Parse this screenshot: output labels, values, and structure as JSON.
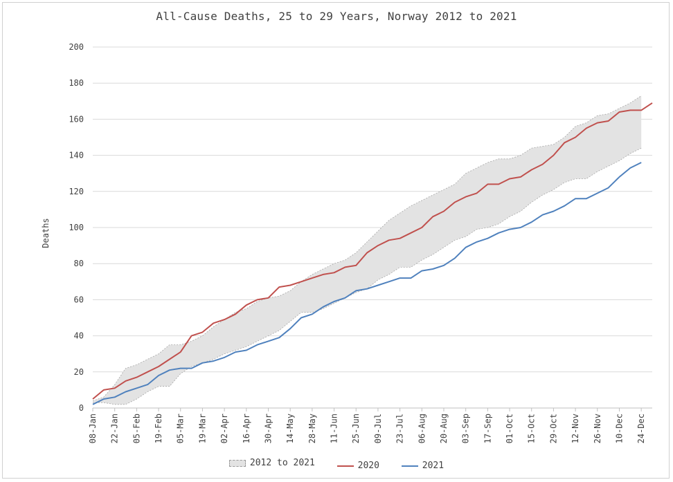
{
  "chart_data": {
    "type": "line",
    "title": "All-Cause Deaths, 25 to 29 Years, Norway 2012 to 2021",
    "xlabel": "",
    "ylabel": "Deaths",
    "ylim": [
      0,
      200
    ],
    "yticks": [
      0,
      20,
      40,
      60,
      80,
      100,
      120,
      140,
      160,
      180,
      200
    ],
    "grid": "horizontal",
    "legend_position": "bottom",
    "x_tick_labels": [
      "08-Jan",
      "22-Jan",
      "05-Feb",
      "19-Feb",
      "05-Mar",
      "19-Mar",
      "02-Apr",
      "16-Apr",
      "30-Apr",
      "14-May",
      "28-May",
      "11-Jun",
      "25-Jun",
      "09-Jul",
      "23-Jul",
      "06-Aug",
      "20-Aug",
      "03-Sep",
      "17-Sep",
      "01-Oct",
      "15-Oct",
      "29-Oct",
      "12-Nov",
      "26-Nov",
      "10-Dec",
      "24-Dec"
    ],
    "band": {
      "name": "2012 to 2021",
      "color": "#e3e3e3",
      "lower": [
        3,
        3,
        2,
        2,
        5,
        9,
        12,
        12,
        19,
        23,
        25,
        27,
        30,
        32,
        34,
        37,
        40,
        43,
        48,
        53,
        53,
        55,
        58,
        61,
        64,
        66,
        71,
        74,
        78,
        78,
        82,
        85,
        89,
        93,
        95,
        99,
        100,
        102,
        106,
        109,
        114,
        118,
        121,
        125,
        127,
        127,
        131,
        134,
        137,
        141,
        144
      ],
      "upper": [
        4,
        6,
        13,
        22,
        24,
        27,
        30,
        35,
        35,
        37,
        40,
        45,
        49,
        53,
        55,
        59,
        61,
        62,
        65,
        70,
        74,
        77,
        80,
        82,
        86,
        92,
        98,
        104,
        108,
        112,
        115,
        118,
        121,
        124,
        130,
        133,
        136,
        138,
        138,
        140,
        144,
        145,
        146,
        150,
        156,
        158,
        162,
        163,
        166,
        169,
        173
      ]
    },
    "series": [
      {
        "name": "2020",
        "color": "#c0504d",
        "values": [
          5,
          10,
          11,
          15,
          17,
          20,
          23,
          27,
          31,
          40,
          42,
          47,
          49,
          52,
          57,
          60,
          61,
          67,
          68,
          70,
          72,
          74,
          75,
          78,
          79,
          86,
          90,
          93,
          94,
          97,
          100,
          106,
          109,
          114,
          117,
          119,
          124,
          124,
          127,
          128,
          132,
          135,
          140,
          147,
          150,
          155,
          158,
          159,
          164,
          165,
          165,
          169
        ]
      },
      {
        "name": "2021",
        "color": "#4f81bd",
        "values": [
          2,
          5,
          6,
          9,
          11,
          13,
          18,
          21,
          22,
          22,
          25,
          26,
          28,
          31,
          32,
          35,
          37,
          39,
          44,
          50,
          52,
          56,
          59,
          61,
          65,
          66,
          68,
          70,
          72,
          72,
          76,
          77,
          79,
          83,
          89,
          92,
          94,
          97,
          99,
          100,
          103,
          107,
          109,
          112,
          116,
          116,
          119,
          122,
          128,
          133,
          136
        ]
      }
    ]
  }
}
